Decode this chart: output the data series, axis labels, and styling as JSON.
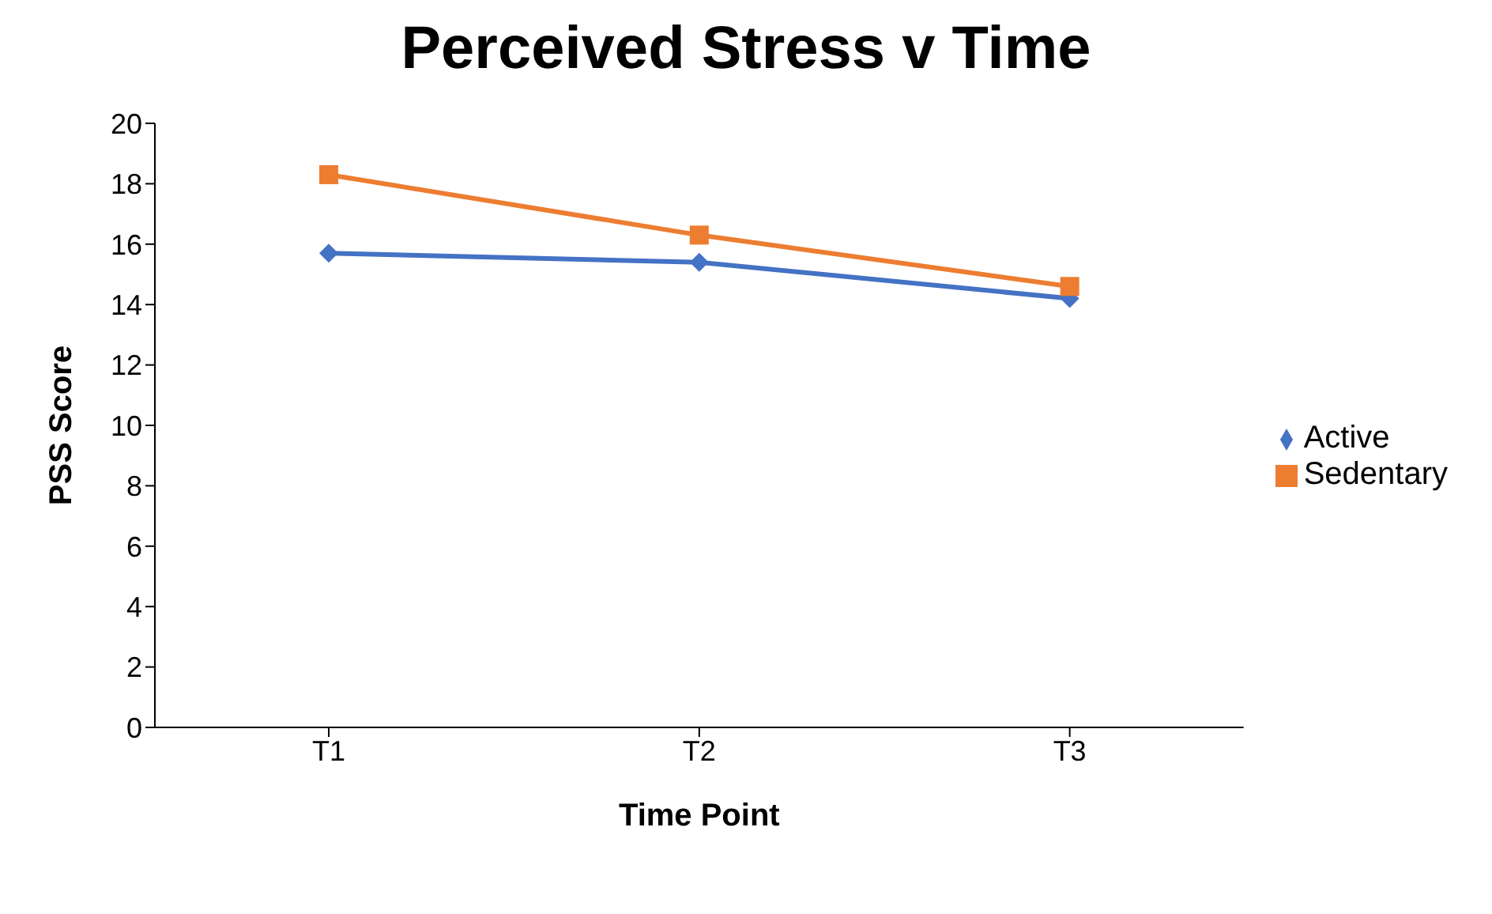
{
  "chart_data": {
    "type": "line",
    "title": "Perceived Stress v Time",
    "xlabel": "Time Point",
    "ylabel": "PSS Score",
    "categories": [
      "T1",
      "T2",
      "T3"
    ],
    "series": [
      {
        "name": "Active",
        "color": "#4472c4",
        "marker": "diamond",
        "values": [
          15.7,
          15.4,
          14.2
        ]
      },
      {
        "name": "Sedentary",
        "color": "#ed7d31",
        "marker": "square",
        "values": [
          18.3,
          16.3,
          14.6
        ]
      }
    ],
    "ylim": [
      0,
      20
    ],
    "yticks": [
      0,
      2,
      4,
      6,
      8,
      10,
      12,
      14,
      16,
      18,
      20
    ],
    "grid": false,
    "legend": "right",
    "line_style": "solid"
  }
}
